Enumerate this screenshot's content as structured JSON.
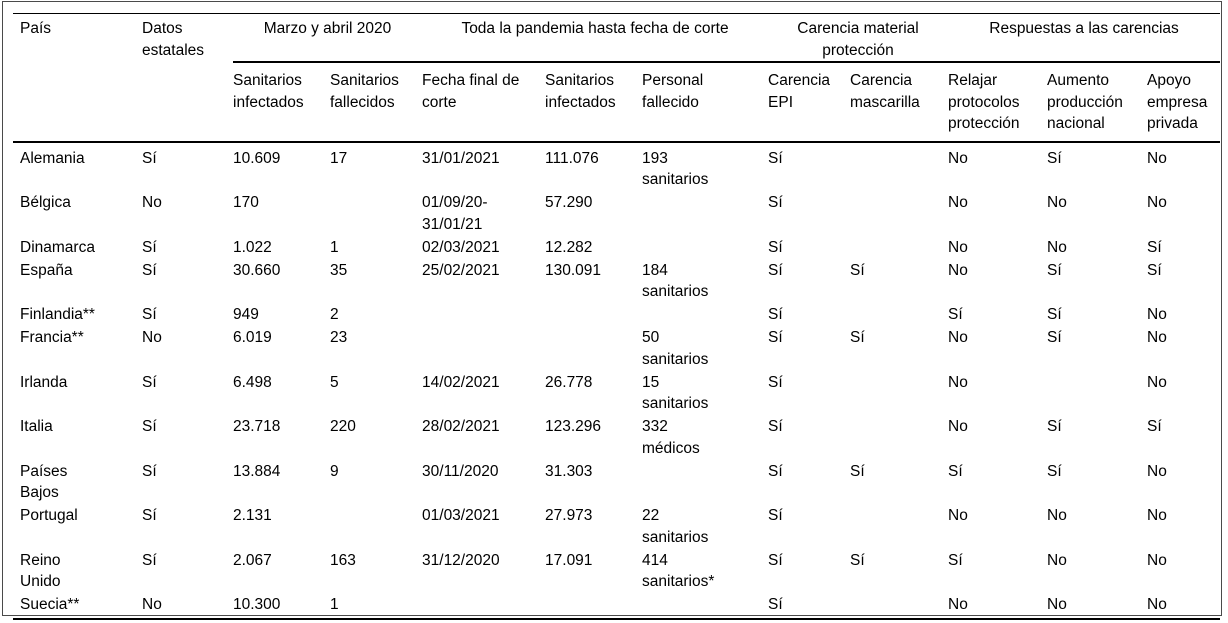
{
  "colors": {
    "text": "#000000",
    "rules": "#000000",
    "frame_border": "#4a4a4a",
    "background": "#ffffff"
  },
  "table": {
    "corner_headers": {
      "pais": "País",
      "datos_estatales": "Datos\nestatales"
    },
    "group_headers": [
      {
        "label": "Marzo y abril 2020",
        "colspan": 2
      },
      {
        "label": "Toda la pandemia hasta fecha de corte",
        "colspan": 3
      },
      {
        "label": "Carencia material\nprotección",
        "colspan": 2
      },
      {
        "label": "Respuestas a las carencias",
        "colspan": 3
      }
    ],
    "sub_headers": [
      "Sanitarios\ninfectados",
      "Sanitarios\nfallecidos",
      "Fecha final de\ncorte",
      "Sanitarios\ninfectados",
      "Personal\nfallecido",
      "Carencia\nEPI",
      "Carencia\nmascarilla",
      "Relajar\nprotocolos\nprotección",
      "Aumento\nproducción\nnacional",
      "Apoyo\nempresa\nprivada"
    ],
    "rows": [
      {
        "pais": "Alemania",
        "cells": [
          "Sí",
          "10.609",
          "17",
          "31/01/2021",
          "111.076",
          "193\nsanitarios",
          "Sí",
          "",
          "No",
          "Sí",
          "No"
        ]
      },
      {
        "pais": "Bélgica",
        "cells": [
          "No",
          "170",
          "",
          "01/09/20-\n31/01/21",
          "57.290",
          "",
          "Sí",
          "",
          "No",
          "No",
          "No"
        ]
      },
      {
        "pais": "Dinamarca",
        "cells": [
          "Sí",
          "1.022",
          "1",
          "02/03/2021",
          "12.282",
          "",
          "Sí",
          "",
          "No",
          "No",
          "Sí"
        ]
      },
      {
        "pais": "España",
        "cells": [
          "Sí",
          "30.660",
          "35",
          "25/02/2021",
          "130.091",
          "184\nsanitarios",
          "Sí",
          "Sí",
          "No",
          "Sí",
          "Sí"
        ]
      },
      {
        "pais": "Finlandia**",
        "cells": [
          "Sí",
          "949",
          "2",
          "",
          "",
          "",
          "Sí",
          "",
          "Sí",
          "Sí",
          "No"
        ]
      },
      {
        "pais": "Francia**",
        "cells": [
          "No",
          "6.019",
          "23",
          "",
          "",
          "50\nsanitarios",
          "Sí",
          "Sí",
          "No",
          "Sí",
          "No"
        ]
      },
      {
        "pais": "Irlanda",
        "cells": [
          "Sí",
          "6.498",
          "5",
          "14/02/2021",
          "26.778",
          "15\nsanitarios",
          "Sí",
          "",
          "No",
          "",
          "No"
        ]
      },
      {
        "pais": "Italia",
        "cells": [
          "Sí",
          "23.718",
          "220",
          "28/02/2021",
          "123.296",
          "332\nmédicos",
          "Sí",
          "",
          "No",
          "Sí",
          "Sí"
        ]
      },
      {
        "pais": "Países\nBajos",
        "cells": [
          "Sí",
          "13.884",
          "9",
          "30/11/2020",
          "31.303",
          "",
          "Sí",
          "Sí",
          "Sí",
          "Sí",
          "No"
        ]
      },
      {
        "pais": "Portugal",
        "cells": [
          "Sí",
          "2.131",
          "",
          "01/03/2021",
          "27.973",
          "22\nsanitarios",
          "Sí",
          "",
          "No",
          "No",
          "No"
        ]
      },
      {
        "pais": "Reino\nUnido",
        "cells": [
          "Sí",
          "2.067",
          "163",
          "31/12/2020",
          "17.091",
          "414\nsanitarios*",
          "Sí",
          "Sí",
          "Sí",
          "No",
          "No"
        ]
      },
      {
        "pais": "Suecia**",
        "cells": [
          "No",
          "10.300",
          "1",
          "",
          "",
          "",
          "Sí",
          "",
          "No",
          "No",
          "No"
        ]
      }
    ]
  }
}
